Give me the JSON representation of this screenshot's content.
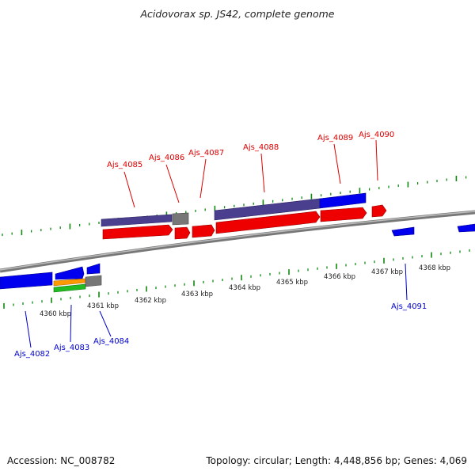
{
  "title": "Acidovorax sp. JS42, complete genome",
  "footer": {
    "accession": "Accession: NC_008782",
    "topology": "Topology: circular; Length: 4,448,856 bp; Genes: 4,069"
  },
  "kbp_labels": [
    "4360 kbp",
    "4361 kbp",
    "4362 kbp",
    "4363 kbp",
    "4364 kbp",
    "4365 kbp",
    "4366 kbp",
    "4367 kbp",
    "4368 kbp"
  ],
  "genes_top": [
    "Ajs_4085",
    "Ajs_4086",
    "Ajs_4087",
    "Ajs_4088",
    "Ajs_4089",
    "Ajs_4090"
  ],
  "genes_bottom": [
    "Ajs_4082",
    "Ajs_4083",
    "Ajs_4084",
    "Ajs_4091"
  ],
  "colors": {
    "top_label": "#dd0000",
    "bottom_label": "#0000cc",
    "cds": "#ee0000",
    "gene_blue": "#0000ee",
    "gene_purple": "#4a3e8e",
    "gene_gray": "#777777",
    "gene_orange": "#ff9900",
    "gene_green": "#22bb22",
    "tick": "#118811",
    "backbone": "#888888"
  }
}
